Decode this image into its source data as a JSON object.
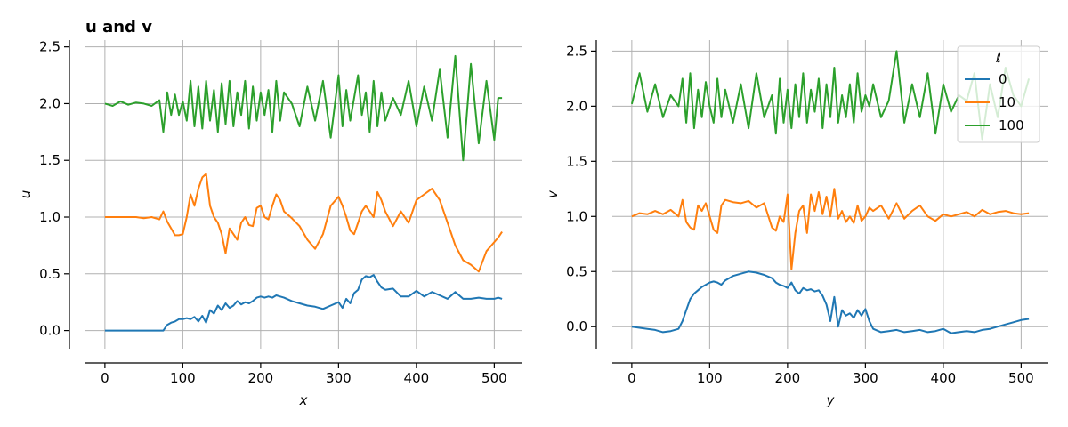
{
  "chart_data": [
    {
      "type": "line",
      "title": "u and v",
      "xlabel": "x",
      "ylabel": "u",
      "xlim": [
        -25,
        535
      ],
      "ylim": [
        -0.16,
        2.56
      ],
      "xticks": [
        0,
        100,
        200,
        300,
        400,
        500
      ],
      "xtick_labels": [
        "0",
        "100",
        "200",
        "300",
        "400",
        "500"
      ],
      "yticks": [
        0.0,
        0.5,
        1.0,
        1.5,
        2.0,
        2.5
      ],
      "ytick_labels": [
        "0.0",
        "0.5",
        "1.0",
        "1.5",
        "2.0",
        "2.5"
      ],
      "grid": true,
      "series": [
        {
          "name": "0",
          "color": "#1f77b4",
          "x": [
            0,
            10,
            20,
            30,
            40,
            50,
            60,
            70,
            75,
            80,
            85,
            90,
            95,
            100,
            105,
            110,
            115,
            120,
            125,
            130,
            135,
            140,
            145,
            150,
            155,
            160,
            165,
            170,
            175,
            180,
            185,
            190,
            195,
            200,
            205,
            210,
            215,
            220,
            225,
            230,
            240,
            250,
            260,
            270,
            280,
            290,
            300,
            305,
            310,
            315,
            320,
            325,
            330,
            335,
            340,
            345,
            350,
            355,
            360,
            370,
            380,
            390,
            400,
            410,
            420,
            430,
            440,
            450,
            460,
            470,
            480,
            490,
            500,
            505,
            510
          ],
          "y": [
            0.0,
            0.0,
            0.0,
            0.0,
            0.0,
            0.0,
            0.0,
            0.0,
            0.0,
            0.05,
            0.07,
            0.08,
            0.1,
            0.1,
            0.11,
            0.1,
            0.12,
            0.08,
            0.13,
            0.07,
            0.18,
            0.15,
            0.22,
            0.18,
            0.24,
            0.2,
            0.22,
            0.26,
            0.23,
            0.25,
            0.24,
            0.26,
            0.29,
            0.3,
            0.29,
            0.3,
            0.29,
            0.31,
            0.3,
            0.29,
            0.26,
            0.24,
            0.22,
            0.21,
            0.19,
            0.22,
            0.25,
            0.2,
            0.28,
            0.24,
            0.33,
            0.36,
            0.45,
            0.48,
            0.47,
            0.49,
            0.43,
            0.38,
            0.36,
            0.37,
            0.3,
            0.3,
            0.35,
            0.3,
            0.34,
            0.31,
            0.28,
            0.34,
            0.28,
            0.28,
            0.29,
            0.28,
            0.28,
            0.29,
            0.28
          ]
        },
        {
          "name": "10",
          "color": "#ff7f0e",
          "x": [
            0,
            10,
            20,
            30,
            40,
            50,
            60,
            70,
            75,
            80,
            85,
            90,
            95,
            100,
            105,
            110,
            115,
            120,
            125,
            130,
            135,
            140,
            145,
            150,
            155,
            160,
            165,
            170,
            175,
            180,
            185,
            190,
            195,
            200,
            205,
            210,
            215,
            220,
            225,
            230,
            240,
            250,
            260,
            270,
            280,
            290,
            300,
            305,
            310,
            315,
            320,
            325,
            330,
            335,
            340,
            345,
            350,
            355,
            360,
            370,
            380,
            390,
            400,
            410,
            420,
            430,
            440,
            450,
            460,
            470,
            480,
            490,
            500,
            505,
            510
          ],
          "y": [
            1.0,
            1.0,
            1.0,
            1.0,
            1.0,
            0.99,
            1.0,
            0.98,
            1.05,
            0.96,
            0.9,
            0.84,
            0.84,
            0.85,
            1.0,
            1.2,
            1.1,
            1.25,
            1.35,
            1.38,
            1.1,
            1.0,
            0.95,
            0.85,
            0.68,
            0.9,
            0.85,
            0.8,
            0.95,
            1.0,
            0.93,
            0.92,
            1.08,
            1.1,
            1.0,
            0.98,
            1.1,
            1.2,
            1.15,
            1.05,
            0.99,
            0.92,
            0.8,
            0.72,
            0.85,
            1.1,
            1.18,
            1.1,
            1.0,
            0.88,
            0.85,
            0.95,
            1.05,
            1.1,
            1.05,
            1.0,
            1.22,
            1.15,
            1.05,
            0.92,
            1.05,
            0.95,
            1.15,
            1.2,
            1.25,
            1.15,
            0.95,
            0.75,
            0.62,
            0.58,
            0.52,
            0.7,
            0.78,
            0.82,
            0.87
          ]
        },
        {
          "name": "100",
          "color": "#2ca02c",
          "x": [
            0,
            10,
            20,
            30,
            40,
            50,
            60,
            70,
            75,
            80,
            85,
            90,
            95,
            100,
            105,
            110,
            115,
            120,
            125,
            130,
            135,
            140,
            145,
            150,
            155,
            160,
            165,
            170,
            175,
            180,
            185,
            190,
            195,
            200,
            205,
            210,
            215,
            220,
            225,
            230,
            240,
            250,
            260,
            270,
            280,
            290,
            300,
            305,
            310,
            315,
            320,
            325,
            330,
            335,
            340,
            345,
            350,
            355,
            360,
            370,
            380,
            390,
            400,
            410,
            420,
            430,
            440,
            450,
            460,
            470,
            480,
            490,
            500,
            505,
            510
          ],
          "y": [
            2.0,
            1.98,
            2.02,
            1.99,
            2.01,
            2.0,
            1.98,
            2.03,
            1.75,
            2.1,
            1.9,
            2.08,
            1.9,
            2.02,
            1.85,
            2.2,
            1.8,
            2.15,
            1.78,
            2.2,
            1.85,
            2.12,
            1.75,
            2.18,
            1.82,
            2.2,
            1.8,
            2.1,
            1.9,
            2.2,
            1.78,
            2.15,
            1.85,
            2.1,
            1.9,
            2.12,
            1.75,
            2.2,
            1.85,
            2.1,
            2.0,
            1.8,
            2.15,
            1.85,
            2.2,
            1.7,
            2.25,
            1.8,
            2.12,
            1.85,
            2.05,
            2.25,
            1.9,
            2.1,
            1.75,
            2.2,
            1.8,
            2.1,
            1.85,
            2.05,
            1.9,
            2.2,
            1.8,
            2.15,
            1.85,
            2.3,
            1.7,
            2.42,
            1.5,
            2.35,
            1.65,
            2.2,
            1.68,
            2.05,
            2.05
          ]
        }
      ]
    },
    {
      "type": "line",
      "title": "",
      "xlabel": "y",
      "ylabel": "v",
      "xlim": [
        -25,
        535
      ],
      "ylim": [
        -0.2,
        2.6
      ],
      "xticks": [
        0,
        100,
        200,
        300,
        400,
        500
      ],
      "xtick_labels": [
        "0",
        "100",
        "200",
        "300",
        "400",
        "500"
      ],
      "yticks": [
        0.0,
        0.5,
        1.0,
        1.5,
        2.0,
        2.5
      ],
      "ytick_labels": [
        "0.0",
        "0.5",
        "1.0",
        "1.5",
        "2.0",
        "2.5"
      ],
      "grid": true,
      "legend": {
        "title": "ℓ",
        "position": "top-right",
        "entries": [
          "0",
          "10",
          "100"
        ]
      },
      "series": [
        {
          "name": "0",
          "color": "#1f77b4",
          "x": [
            0,
            10,
            20,
            30,
            40,
            50,
            60,
            65,
            70,
            75,
            80,
            85,
            90,
            95,
            100,
            105,
            110,
            115,
            120,
            130,
            140,
            150,
            160,
            170,
            180,
            185,
            190,
            195,
            200,
            205,
            210,
            215,
            220,
            225,
            230,
            235,
            240,
            245,
            250,
            255,
            260,
            265,
            270,
            275,
            280,
            285,
            290,
            295,
            300,
            305,
            310,
            320,
            330,
            340,
            350,
            360,
            370,
            380,
            390,
            400,
            410,
            420,
            430,
            440,
            450,
            460,
            470,
            480,
            490,
            500,
            510
          ],
          "y": [
            0.0,
            -0.01,
            -0.02,
            -0.03,
            -0.05,
            -0.04,
            -0.02,
            0.05,
            0.15,
            0.25,
            0.3,
            0.33,
            0.36,
            0.38,
            0.4,
            0.41,
            0.4,
            0.38,
            0.42,
            0.46,
            0.48,
            0.5,
            0.49,
            0.47,
            0.44,
            0.4,
            0.38,
            0.37,
            0.35,
            0.4,
            0.33,
            0.3,
            0.35,
            0.33,
            0.34,
            0.32,
            0.33,
            0.28,
            0.2,
            0.05,
            0.27,
            0.0,
            0.15,
            0.1,
            0.12,
            0.08,
            0.15,
            0.1,
            0.16,
            0.05,
            -0.02,
            -0.05,
            -0.04,
            -0.03,
            -0.05,
            -0.04,
            -0.03,
            -0.05,
            -0.04,
            -0.02,
            -0.06,
            -0.05,
            -0.04,
            -0.05,
            -0.03,
            -0.02,
            0.0,
            0.02,
            0.04,
            0.06,
            0.07
          ]
        },
        {
          "name": "10",
          "color": "#ff7f0e",
          "x": [
            0,
            10,
            20,
            30,
            40,
            50,
            60,
            65,
            70,
            75,
            80,
            85,
            90,
            95,
            100,
            105,
            110,
            115,
            120,
            130,
            140,
            150,
            160,
            170,
            180,
            185,
            190,
            195,
            200,
            205,
            210,
            215,
            220,
            225,
            230,
            235,
            240,
            245,
            250,
            255,
            260,
            265,
            270,
            275,
            280,
            285,
            290,
            295,
            300,
            305,
            310,
            320,
            330,
            340,
            350,
            360,
            370,
            380,
            390,
            400,
            410,
            420,
            430,
            440,
            450,
            460,
            470,
            480,
            490,
            500,
            510
          ],
          "y": [
            1.0,
            1.03,
            1.02,
            1.05,
            1.02,
            1.06,
            1.0,
            1.15,
            0.95,
            0.9,
            0.88,
            1.1,
            1.05,
            1.12,
            1.0,
            0.88,
            0.85,
            1.1,
            1.15,
            1.13,
            1.12,
            1.14,
            1.08,
            1.12,
            0.9,
            0.87,
            1.0,
            0.95,
            1.2,
            0.52,
            0.85,
            1.05,
            1.1,
            0.85,
            1.2,
            1.05,
            1.22,
            1.02,
            1.18,
            1.0,
            1.25,
            0.98,
            1.05,
            0.95,
            1.0,
            0.94,
            1.1,
            0.96,
            1.0,
            1.08,
            1.05,
            1.1,
            0.98,
            1.12,
            0.98,
            1.05,
            1.1,
            1.0,
            0.96,
            1.02,
            1.0,
            1.02,
            1.04,
            1.0,
            1.06,
            1.02,
            1.04,
            1.05,
            1.03,
            1.02,
            1.03
          ]
        },
        {
          "name": "100",
          "color": "#2ca02c",
          "x": [
            0,
            10,
            20,
            30,
            40,
            50,
            60,
            65,
            70,
            75,
            80,
            85,
            90,
            95,
            100,
            105,
            110,
            115,
            120,
            130,
            140,
            150,
            160,
            170,
            180,
            185,
            190,
            195,
            200,
            205,
            210,
            215,
            220,
            225,
            230,
            235,
            240,
            245,
            250,
            255,
            260,
            265,
            270,
            275,
            280,
            285,
            290,
            295,
            300,
            305,
            310,
            320,
            330,
            340,
            350,
            360,
            370,
            380,
            390,
            400,
            410,
            420,
            430,
            440,
            450,
            460,
            470,
            480,
            490,
            500,
            510
          ],
          "y": [
            2.02,
            2.3,
            1.95,
            2.2,
            1.9,
            2.1,
            2.0,
            2.25,
            1.85,
            2.3,
            1.8,
            2.15,
            1.9,
            2.22,
            2.0,
            1.85,
            2.25,
            1.9,
            2.15,
            1.85,
            2.2,
            1.8,
            2.3,
            1.9,
            2.1,
            1.75,
            2.25,
            1.85,
            2.15,
            1.8,
            2.2,
            1.9,
            2.3,
            1.85,
            2.15,
            1.95,
            2.25,
            1.8,
            2.2,
            1.9,
            2.35,
            1.85,
            2.1,
            1.9,
            2.2,
            1.85,
            2.3,
            1.95,
            2.1,
            2.0,
            2.2,
            1.9,
            2.05,
            2.5,
            1.85,
            2.2,
            1.9,
            2.3,
            1.75,
            2.2,
            1.95,
            2.1,
            2.05,
            2.3,
            1.7,
            2.2,
            1.9,
            2.35,
            2.1,
            2.0,
            2.25
          ]
        }
      ]
    }
  ]
}
